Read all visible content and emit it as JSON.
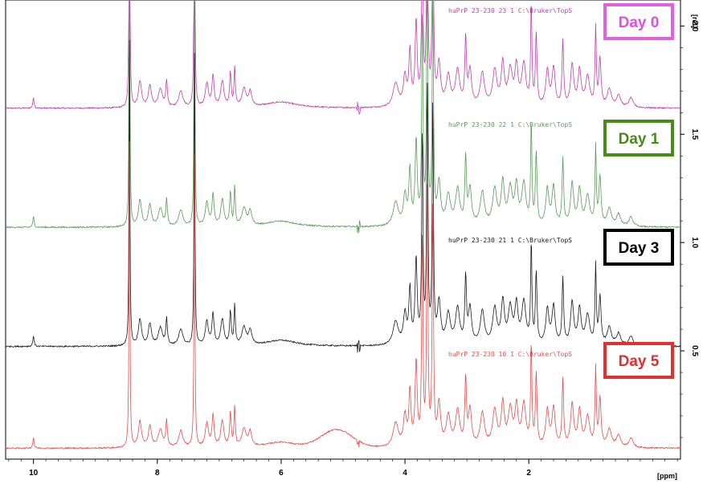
{
  "chart_data": {
    "type": "line",
    "title": "",
    "xlabel": "[ppm]",
    "ylabel": "[rel]",
    "x_reversed": true,
    "xlim": [
      10.45,
      -0.45
    ],
    "ylim": [
      0.0,
      2.12
    ],
    "x_ticks": [
      "10",
      "8",
      "6",
      "4",
      "2"
    ],
    "x_tick_values": [
      10,
      8,
      6,
      4,
      2
    ],
    "y_ticks": [
      "2.0",
      "1.5",
      "1.0",
      "0.5"
    ],
    "y_tick_values": [
      2.0,
      1.5,
      1.0,
      0.5
    ],
    "peak_positions_ppm": [
      10.0,
      8.45,
      8.3,
      8.1,
      7.85,
      7.4,
      7.1,
      6.95,
      6.75,
      6.55,
      4.9,
      4.6,
      4.15,
      3.95,
      3.75,
      3.55,
      3.05,
      2.7,
      2.45,
      2.2,
      1.95,
      1.65,
      1.45,
      1.2,
      0.9,
      0.6
    ],
    "series": [
      {
        "name": "Day 0",
        "spectrum_label": "huPrP 23-230  23  1  C:\\Bruker\\TopS",
        "baseline": 1.62,
        "color": "#c040a8",
        "box_color": "#e060e0",
        "text_color": "#e050e0"
      },
      {
        "name": "Day 1",
        "spectrum_label": "huPrP 23-230  22  1  C:\\Bruker\\TopS",
        "baseline": 1.07,
        "color": "#5a9a5a",
        "box_color": "#4a8a1a",
        "text_color": "#4a8a1a"
      },
      {
        "name": "Day 3",
        "spectrum_label": "huPrP 23-230  21  1  C:\\Bruker\\TopS",
        "baseline": 0.52,
        "color": "#1a1a1a",
        "box_color": "#000000",
        "text_color": "#000000"
      },
      {
        "name": "Day 5",
        "spectrum_label": "huPrP 23-230  10  1  C:\\Bruker\\TopS",
        "baseline": 0.05,
        "color": "#e05050",
        "box_color": "#e03030",
        "text_color": "#e03030"
      }
    ]
  }
}
